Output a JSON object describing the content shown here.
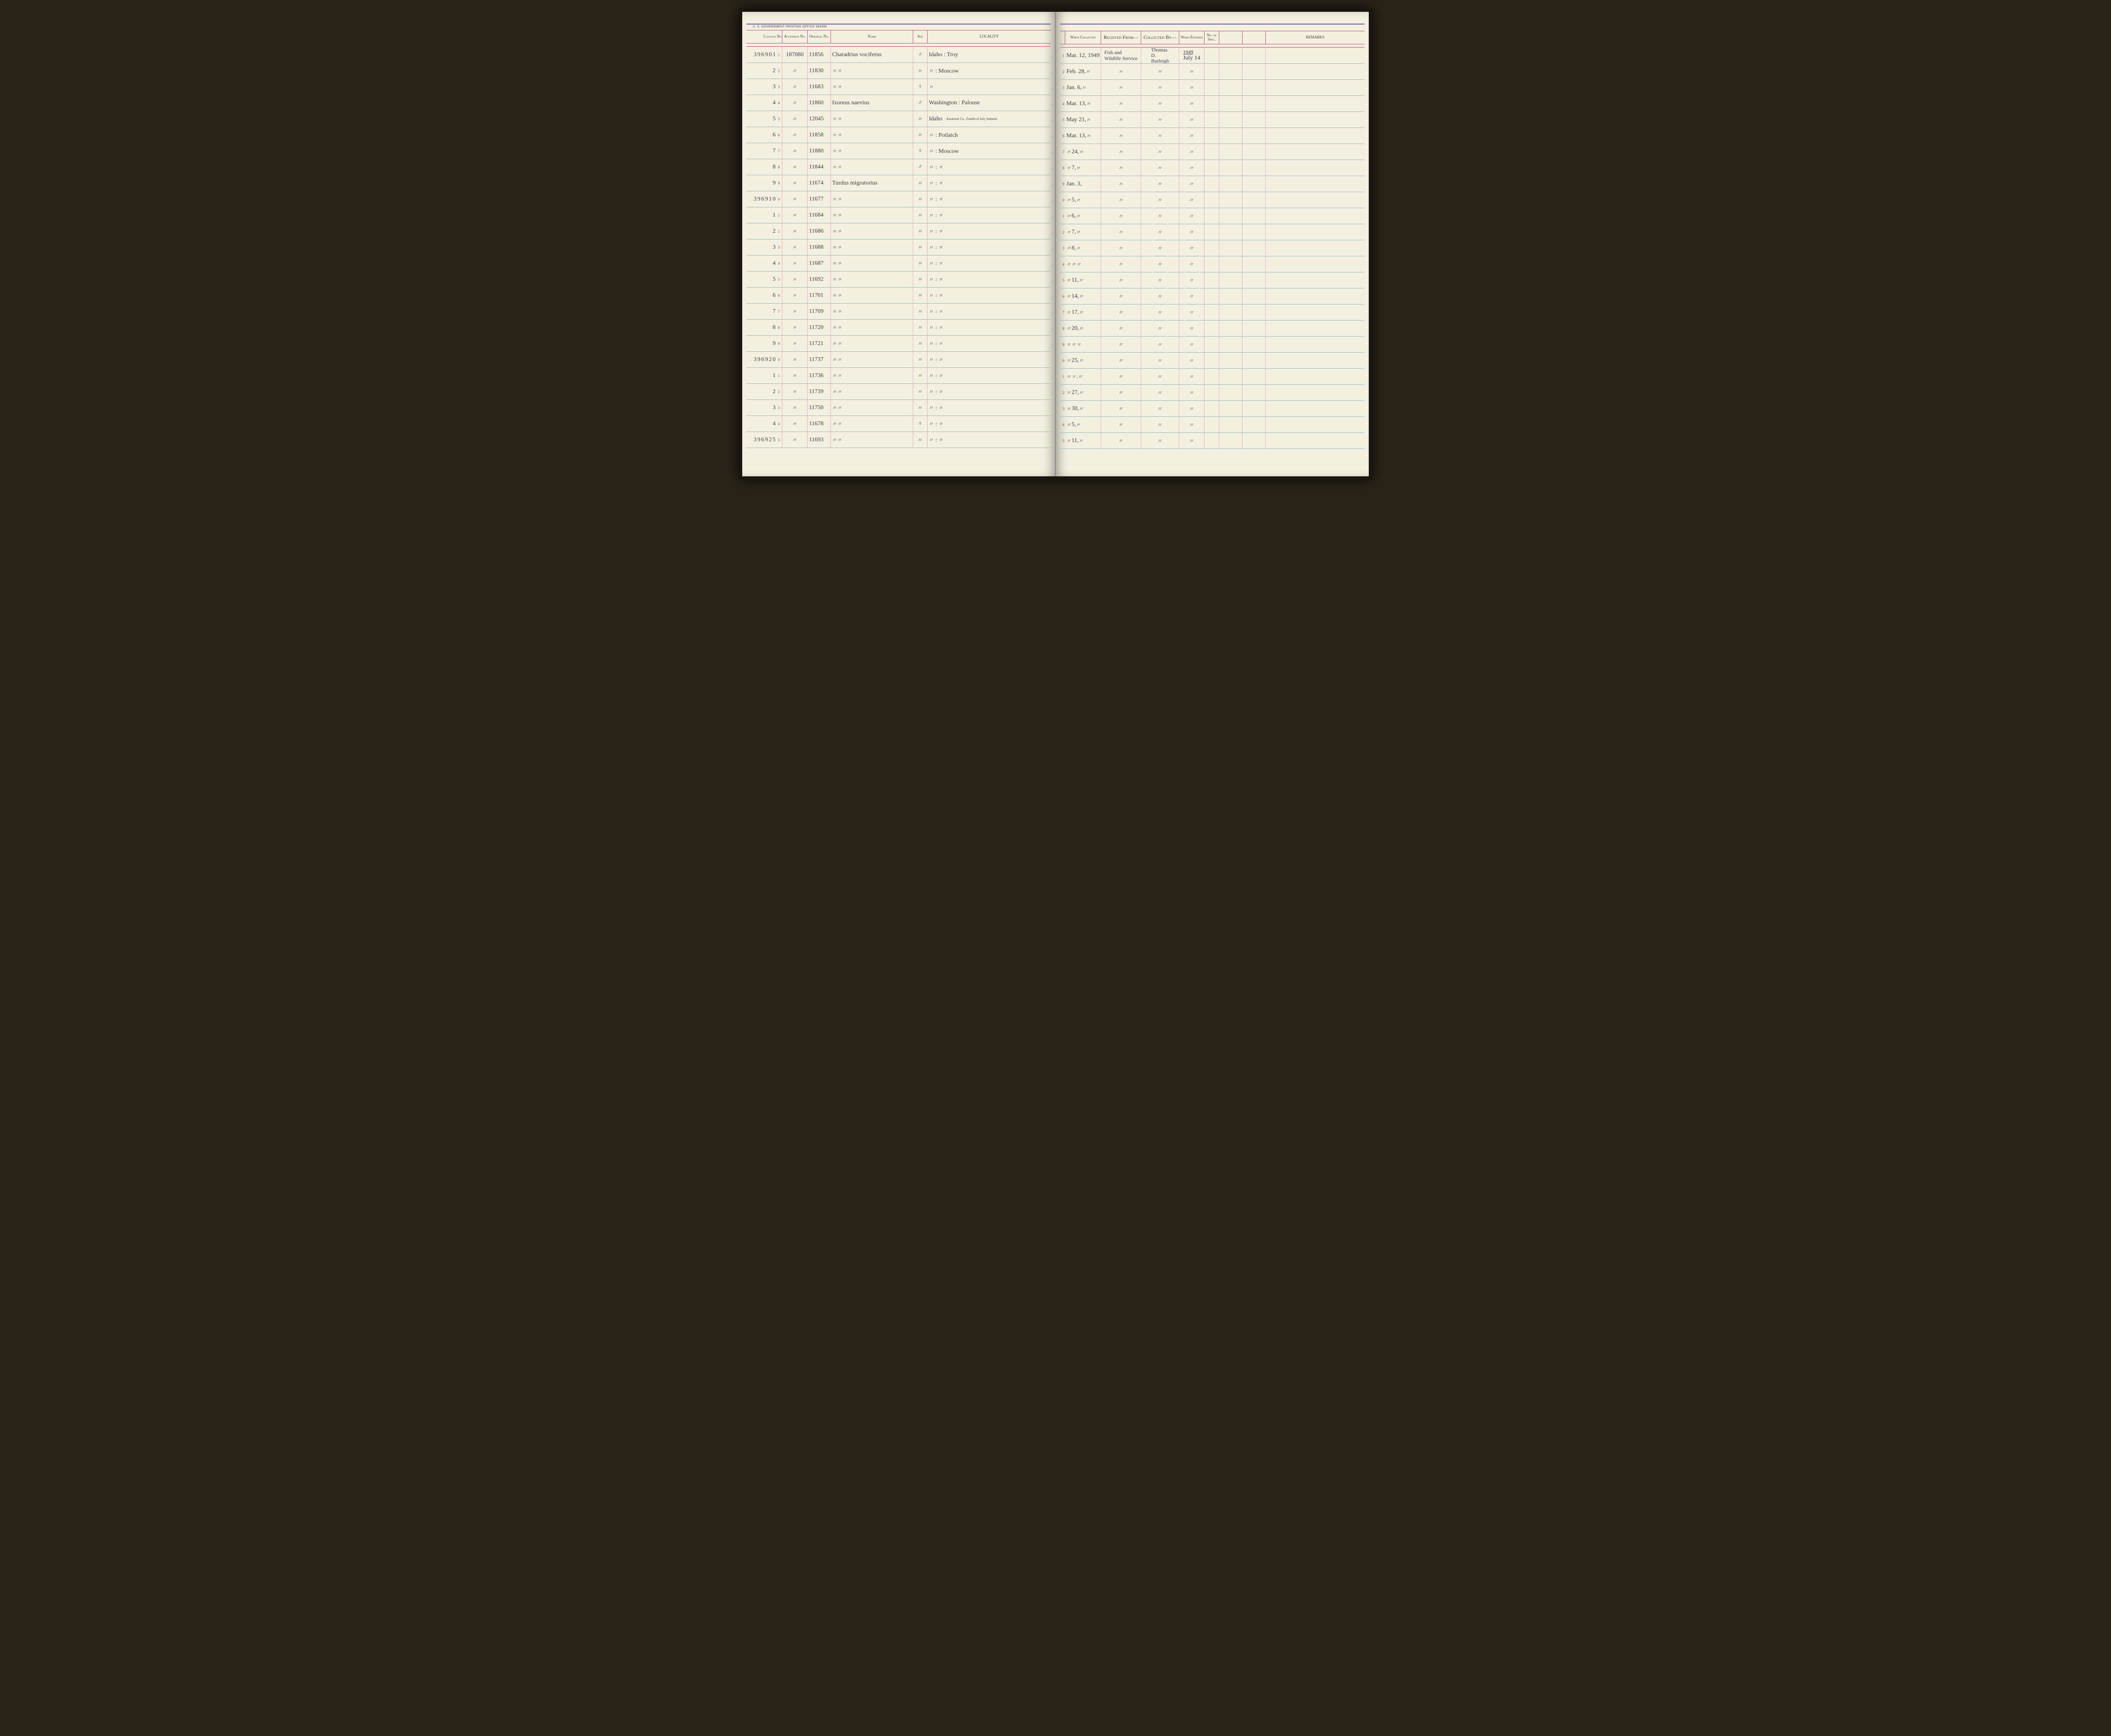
{
  "print_office": "U. S. GOVERNMENT PRINTING OFFICE   484999",
  "headers_left": {
    "catalog": "Catalog No",
    "accession": "Accession No.",
    "original": "Original No.",
    "name": "Name",
    "sex": "Sex",
    "locality": "LOCALITY"
  },
  "headers_right": {
    "when_collected": "When Collected",
    "received_from": "Received From—",
    "collected_by": "Collected By—",
    "when_entered": "When Entered",
    "no_spec": "No. of Spec.",
    "remarks": "REMARKS"
  },
  "catalog_prefixes": {
    "r0": "39690",
    "r9": "39691",
    "r19": "39692",
    "r24": "39692"
  },
  "rows": [
    {
      "n": "1",
      "cat": "1",
      "acc": "187080",
      "orig": "11856",
      "name": "Charadrius vociferus",
      "sex": "♂",
      "loc": "Idaho : Troy",
      "when": "Mar. 12, 1949",
      "recv": "Fish and Wildlife Service",
      "coll": "Thomas D. Burleigh",
      "ent_top": "1949",
      "ent": "July 14"
    },
    {
      "n": "2",
      "cat": "2",
      "acc": "〃",
      "orig": "11830",
      "name": "〃    〃",
      "sex": "〃",
      "loc": "〃    : Moscow",
      "when": "Feb. 28, 〃",
      "recv": "〃",
      "coll": "〃",
      "ent": "〃"
    },
    {
      "n": "3",
      "cat": "3",
      "acc": "〃",
      "orig": "11683",
      "name": "〃    〃",
      "sex": "♀",
      "loc": "〃",
      "when": "Jan. 6, 〃",
      "recv": "〃",
      "coll": "〃",
      "ent": "〃"
    },
    {
      "n": "4",
      "cat": "4",
      "acc": "〃",
      "orig": "11860",
      "name": "Ixoreus naevius",
      "sex": "♂",
      "loc": "Washington : Palouse",
      "when": "Mar. 13, 〃",
      "recv": "〃",
      "coll": "〃",
      "ent": "〃"
    },
    {
      "n": "5",
      "cat": "5",
      "acc": "〃",
      "orig": "12045",
      "name": "〃    〃",
      "sex": "〃",
      "loc": "Idaho",
      "loc_note": "Kootenai Co., Fourth of July Summit",
      "when": "May 21, 〃",
      "recv": "〃",
      "coll": "〃",
      "ent": "〃"
    },
    {
      "n": "6",
      "cat": "6",
      "acc": "〃",
      "orig": "11858",
      "name": "〃    〃",
      "sex": "〃",
      "loc": "〃    : Potlatch",
      "when": "Mar. 13, 〃",
      "recv": "〃",
      "coll": "〃",
      "ent": "〃"
    },
    {
      "n": "7",
      "cat": "7",
      "acc": "〃",
      "orig": "11880",
      "name": "〃    〃",
      "sex": "♀",
      "loc": "〃    : Moscow",
      "when": "〃 24, 〃",
      "recv": "〃",
      "coll": "〃",
      "ent": "〃"
    },
    {
      "n": "8",
      "cat": "8",
      "acc": "〃",
      "orig": "11844",
      "name": "〃    〃",
      "sex": "♂",
      "loc": "〃    :  〃",
      "when": "〃 7, 〃",
      "recv": "〃",
      "coll": "〃",
      "ent": "〃"
    },
    {
      "n": "9",
      "cat": "9",
      "acc": "〃",
      "orig": "11674",
      "name": "Turdus migratorius",
      "sex": "〃",
      "loc": "〃    :  〃",
      "when": "Jan. 3,",
      "recv": "〃",
      "coll": "〃",
      "ent": "〃"
    },
    {
      "n": "0",
      "cat": "0",
      "acc": "〃",
      "orig": "11677",
      "name": "〃    〃",
      "sex": "〃",
      "loc": "〃    :  〃",
      "when": "〃 5, 〃",
      "recv": "〃",
      "coll": "〃",
      "ent": "〃"
    },
    {
      "n": "1",
      "cat": "1",
      "acc": "〃",
      "orig": "11684",
      "name": "〃    〃",
      "sex": "〃",
      "loc": "〃    :  〃",
      "when": "〃 6, 〃",
      "recv": "〃",
      "coll": "〃",
      "ent": "〃"
    },
    {
      "n": "2",
      "cat": "2",
      "acc": "〃",
      "orig": "11686",
      "name": "〃    〃",
      "sex": "〃",
      "loc": "〃    :  〃",
      "when": "〃 7, 〃",
      "recv": "〃",
      "coll": "〃",
      "ent": "〃"
    },
    {
      "n": "3",
      "cat": "3",
      "acc": "〃",
      "orig": "11688",
      "name": "〃    〃",
      "sex": "〃",
      "loc": "〃    :  〃",
      "when": "〃 8, 〃",
      "recv": "〃",
      "coll": "〃",
      "ent": "〃"
    },
    {
      "n": "4",
      "cat": "4",
      "acc": "〃",
      "orig": "11687",
      "name": "〃    〃",
      "sex": "〃",
      "loc": "〃    :  〃",
      "when": "〃 〃 〃",
      "recv": "〃",
      "coll": "〃",
      "ent": "〃"
    },
    {
      "n": "5",
      "cat": "5",
      "acc": "〃",
      "orig": "11692",
      "name": "〃    〃",
      "sex": "〃",
      "loc": "〃    :  〃",
      "when": "〃 11, 〃",
      "recv": "〃",
      "coll": "〃",
      "ent": "〃"
    },
    {
      "n": "6",
      "cat": "6",
      "acc": "〃",
      "orig": "11701",
      "name": "〃    〃",
      "sex": "〃",
      "loc": "〃    :  〃",
      "when": "〃 14, 〃",
      "recv": "〃",
      "coll": "〃",
      "ent": "〃"
    },
    {
      "n": "7",
      "cat": "7",
      "acc": "〃",
      "orig": "11709",
      "name": "〃    〃",
      "sex": "〃",
      "loc": "〃    :  〃",
      "when": "〃 17, 〃",
      "recv": "〃",
      "coll": "〃",
      "ent": "〃"
    },
    {
      "n": "8",
      "cat": "8",
      "acc": "〃",
      "orig": "11720",
      "name": "〃    〃",
      "sex": "〃",
      "loc": "〃    :  〃",
      "when": "〃 20, 〃",
      "recv": "〃",
      "coll": "〃",
      "ent": "〃"
    },
    {
      "n": "9",
      "cat": "9",
      "acc": "〃",
      "orig": "11721",
      "name": "〃    〃",
      "sex": "〃",
      "loc": "〃    :  〃",
      "when": "〃 〃 〃",
      "recv": "〃",
      "coll": "〃",
      "ent": "〃"
    },
    {
      "n": "0",
      "cat": "0",
      "acc": "〃",
      "orig": "11737",
      "name": "〃    〃",
      "sex": "〃",
      "loc": "〃    :  〃",
      "when": "〃 25, 〃",
      "recv": "〃",
      "coll": "〃",
      "ent": "〃"
    },
    {
      "n": "1",
      "cat": "1",
      "acc": "〃",
      "orig": "11736",
      "name": "〃    〃",
      "sex": "〃",
      "loc": "〃    :  〃",
      "when": "〃 〃 . 〃",
      "recv": "〃",
      "coll": "〃",
      "ent": "〃"
    },
    {
      "n": "2",
      "cat": "2",
      "acc": "〃",
      "orig": "11739",
      "name": "〃    〃",
      "sex": "〃",
      "loc": "〃    :  〃",
      "when": "〃 27, 〃",
      "recv": "〃",
      "coll": "〃",
      "ent": "〃"
    },
    {
      "n": "3",
      "cat": "3",
      "acc": "〃",
      "orig": "11750",
      "name": "〃    〃",
      "sex": "〃",
      "loc": "〃    :  〃",
      "when": "〃 30, 〃",
      "recv": "〃",
      "coll": "〃",
      "ent": "〃"
    },
    {
      "n": "4",
      "cat": "4",
      "acc": "〃",
      "orig": "11678",
      "name": "〃    〃",
      "sex": "♀",
      "loc": "〃    :  〃",
      "when": "〃 5, 〃",
      "recv": "〃",
      "coll": "〃",
      "ent": "〃"
    },
    {
      "n": "5",
      "cat": "5",
      "acc": "〃",
      "orig": "11693",
      "name": "〃    〃",
      "sex": "〃",
      "loc": "〃    :  〃",
      "when": "〃 11, 〃",
      "recv": "〃",
      "coll": "〃",
      "ent": "〃"
    }
  ]
}
